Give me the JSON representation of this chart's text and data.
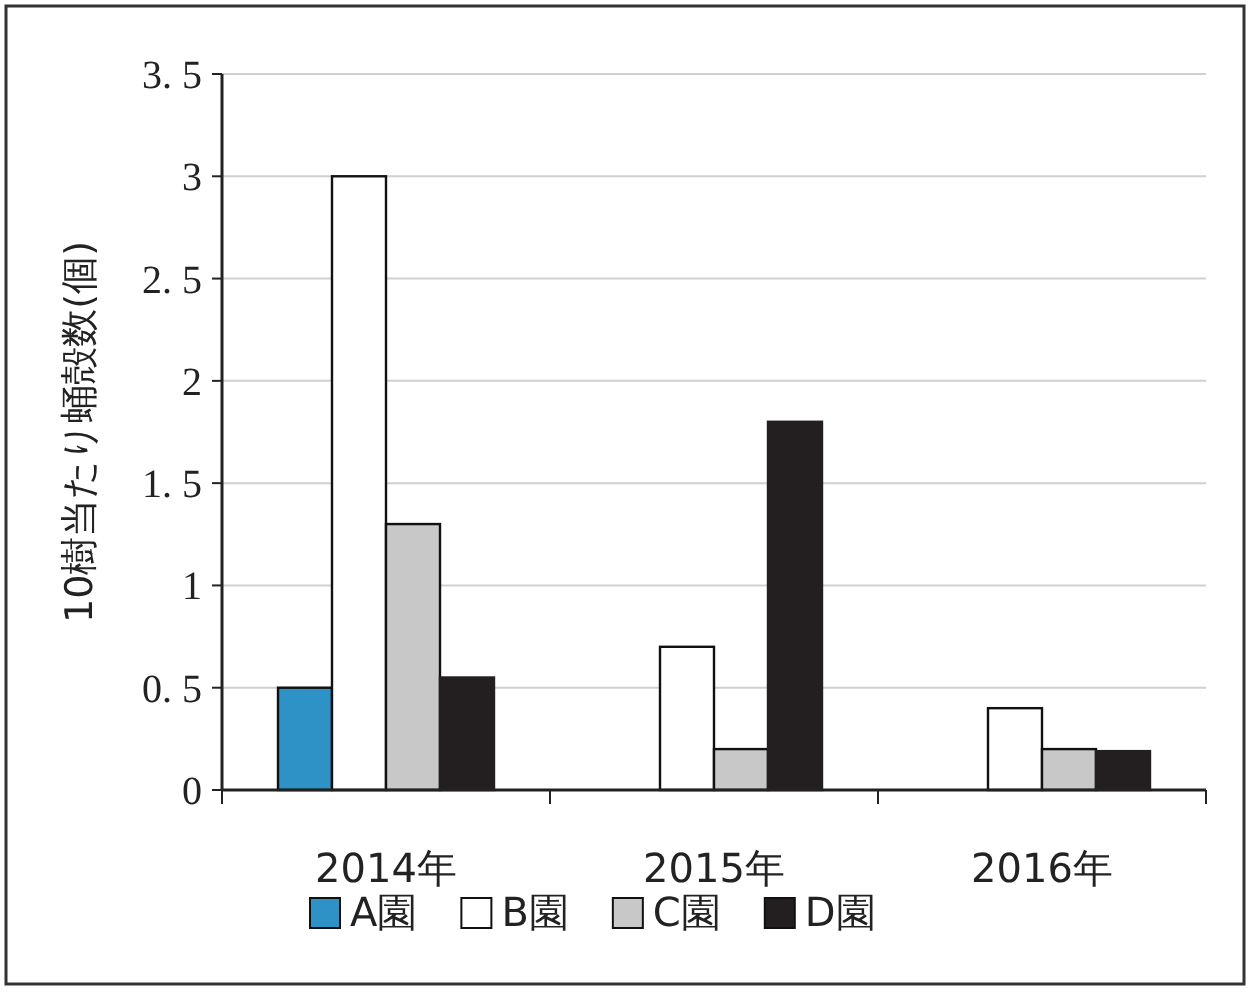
{
  "chart_data": {
    "type": "bar",
    "ylabel": "10樹当たり蛹殻数(個)",
    "categories": [
      "2014年",
      "2015年",
      "2016年"
    ],
    "series": [
      {
        "name": "A園",
        "color": "#2e92c6",
        "values": [
          0.5,
          null,
          null
        ]
      },
      {
        "name": "B園",
        "color": "#ffffff",
        "values": [
          3.0,
          0.7,
          0.4
        ]
      },
      {
        "name": "C園",
        "color": "#c8c8c8",
        "values": [
          1.3,
          0.2,
          0.2
        ]
      },
      {
        "name": "D園",
        "color": "#231f20",
        "values": [
          0.55,
          1.8,
          0.19
        ]
      }
    ],
    "ylim": [
      0,
      3.5
    ],
    "yticks": [
      0,
      {
        "value": 0.5,
        "label": "0. 5"
      },
      1,
      {
        "value": 1.5,
        "label": "1. 5"
      },
      2,
      {
        "value": 2.5,
        "label": "2. 5"
      },
      3,
      {
        "value": 3.5,
        "label": "3. 5"
      }
    ],
    "grid": "y",
    "legend": "bottom"
  }
}
